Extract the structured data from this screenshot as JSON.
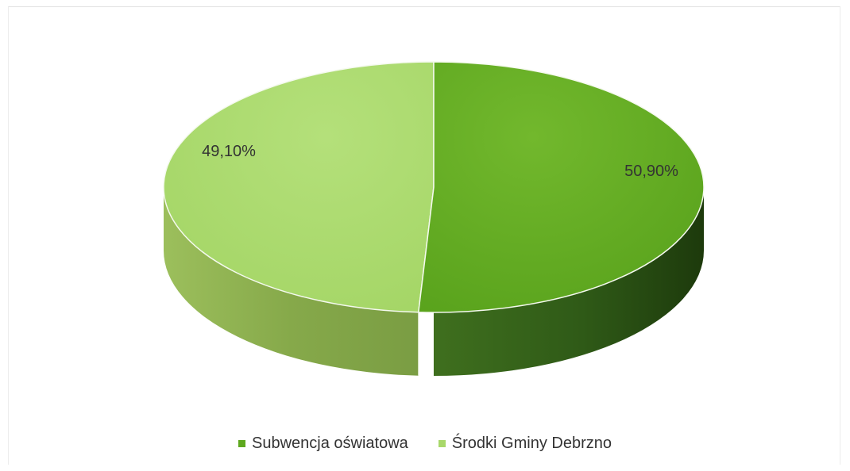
{
  "chart_data": {
    "type": "pie",
    "title": "",
    "slices": [
      {
        "name": "Subwencja oświatowa",
        "value": 50.9,
        "label": "50,90%",
        "color": "#5ea81f"
      },
      {
        "name": "Środki Gminy Debrzno",
        "value": 49.1,
        "label": "49,10%",
        "color": "#a8d86a"
      }
    ],
    "legend": {
      "position": "bottom",
      "items": [
        "Subwencja oświatowa",
        "Środki Gminy Debrzno"
      ]
    },
    "style": "3d"
  }
}
